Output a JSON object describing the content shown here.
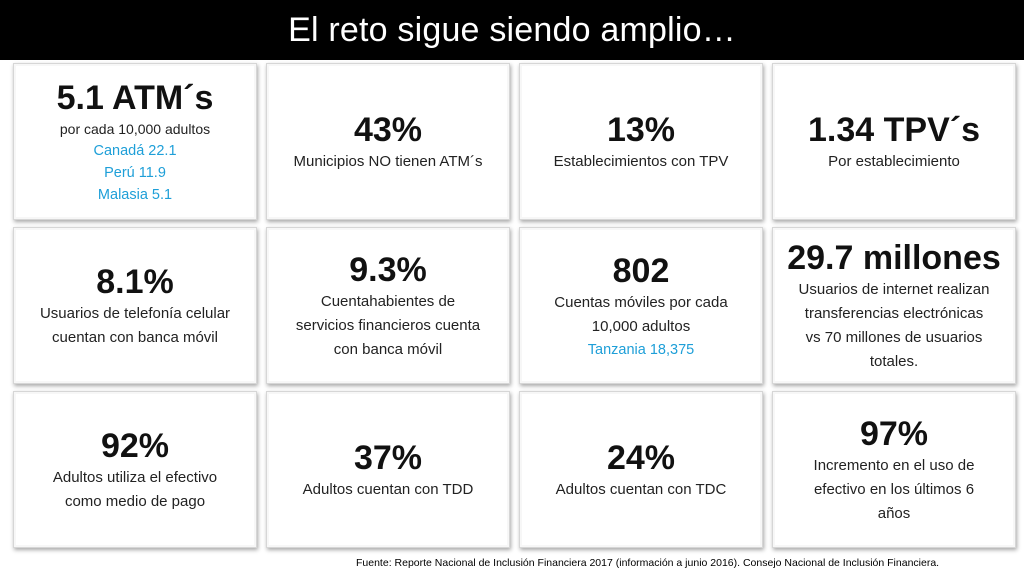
{
  "title": "El reto sigue siendo amplio…",
  "colors": {
    "title_bg": "#000000",
    "highlight": "#1e9fd8"
  },
  "cards": [
    {
      "value": "5.1 ATM´s",
      "lines": [
        "por cada 10,000 adultos"
      ],
      "highlights": [
        "Canadá 22.1",
        "Perú 11.9",
        "Malasia 5.1"
      ]
    },
    {
      "value": "43%",
      "lines": [
        "Municipios NO tienen ATM´s"
      ]
    },
    {
      "value": "13%",
      "lines": [
        "Establecimientos con TPV"
      ]
    },
    {
      "value": "1.34 TPV´s",
      "lines": [
        "Por establecimiento"
      ]
    },
    {
      "value": "8.1%",
      "lines": [
        "Usuarios de telefonía celular",
        "cuentan con banca móvil"
      ]
    },
    {
      "value": "9.3%",
      "lines": [
        "Cuentahabientes de",
        "servicios financieros cuenta",
        "con banca móvil"
      ]
    },
    {
      "value": "802",
      "lines": [
        "Cuentas móviles por cada",
        "10,000 adultos"
      ],
      "highlights": [
        "Tanzania 18,375"
      ]
    },
    {
      "value": "29.7 millones",
      "lines": [
        "Usuarios de internet realizan",
        "transferencias electrónicas",
        "vs 70 millones de usuarios",
        "totales."
      ]
    },
    {
      "value": "92%",
      "lines": [
        "Adultos utiliza el efectivo",
        "como medio de pago"
      ]
    },
    {
      "value": "37%",
      "lines": [
        "Adultos cuentan con TDD"
      ]
    },
    {
      "value": "24%",
      "lines": [
        "Adultos cuentan con TDC"
      ]
    },
    {
      "value": "97%",
      "lines": [
        "Incremento en el uso de",
        "efectivo en los últimos 6",
        "años"
      ]
    }
  ],
  "footer": "Fuente: Reporte Nacional de Inclusión Financiera 2017 (información a junio 2016). Consejo Nacional de Inclusión Financiera."
}
